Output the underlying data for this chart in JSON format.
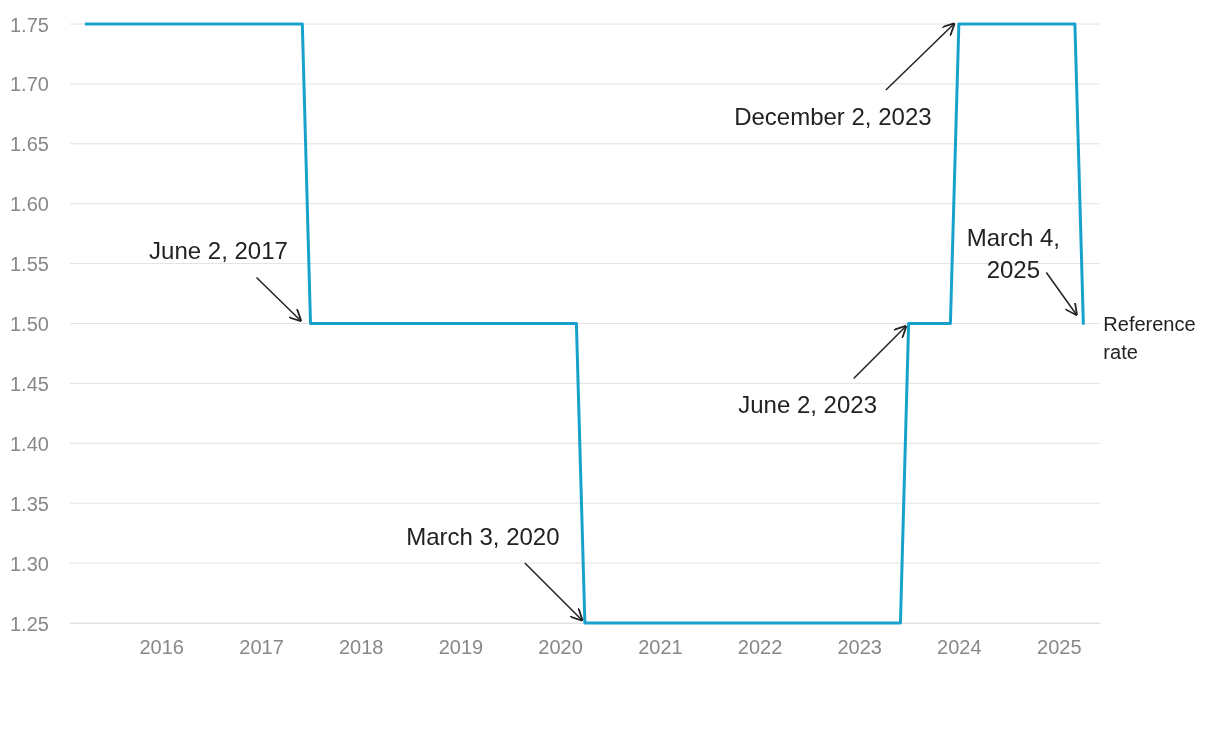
{
  "chart_data": {
    "type": "line",
    "x": [
      "2015-04",
      "2017-06",
      "2017-07",
      "2020-03",
      "2020-04",
      "2023-06",
      "2023-07",
      "2023-12",
      "2024-01",
      "2025-03",
      "2025-04"
    ],
    "series": [
      {
        "name": "Reference rate",
        "color": "#18a1cd",
        "values": [
          1.75,
          1.75,
          1.5,
          1.5,
          1.25,
          1.25,
          1.5,
          1.5,
          1.75,
          1.75,
          1.5
        ]
      }
    ],
    "xlim": [
      "2015-02",
      "2025-06"
    ],
    "xticks": [
      {
        "value": "2016",
        "label": "2016"
      },
      {
        "value": "2017",
        "label": "2017"
      },
      {
        "value": "2018",
        "label": "2018"
      },
      {
        "value": "2019",
        "label": "2019"
      },
      {
        "value": "2020",
        "label": "2020"
      },
      {
        "value": "2021",
        "label": "2021"
      },
      {
        "value": "2022",
        "label": "2022"
      },
      {
        "value": "2023",
        "label": "2023"
      },
      {
        "value": "2024",
        "label": "2024"
      },
      {
        "value": "2025",
        "label": "2025"
      }
    ],
    "ylim": [
      1.25,
      1.75
    ],
    "yticks": [
      {
        "value": 1.25,
        "label": "1.25"
      },
      {
        "value": 1.3,
        "label": "1.30"
      },
      {
        "value": 1.35,
        "label": "1.35"
      },
      {
        "value": 1.4,
        "label": "1.40"
      },
      {
        "value": 1.45,
        "label": "1.45"
      },
      {
        "value": 1.5,
        "label": "1.50"
      },
      {
        "value": 1.55,
        "label": "1.55"
      },
      {
        "value": 1.6,
        "label": "1.60"
      },
      {
        "value": 1.65,
        "label": "1.65"
      },
      {
        "value": 1.7,
        "label": "1.70"
      },
      {
        "value": 1.75,
        "label": "1.75"
      }
    ],
    "grid": "y",
    "legend": false,
    "marker": "none",
    "line_style": "solid",
    "annotations": [
      {
        "text": "June 2, 2017",
        "x": "2017-07",
        "y": 1.5
      },
      {
        "text": "March 3, 2020",
        "x": "2020-04",
        "y": 1.25
      },
      {
        "text": "June 2, 2023",
        "x": "2023-07",
        "y": 1.5
      },
      {
        "text": "December 2, 2023",
        "x": "2024-01",
        "y": 1.75
      },
      {
        "text": "March 4, 2025",
        "x": "2025-04",
        "y": 1.5
      }
    ]
  }
}
